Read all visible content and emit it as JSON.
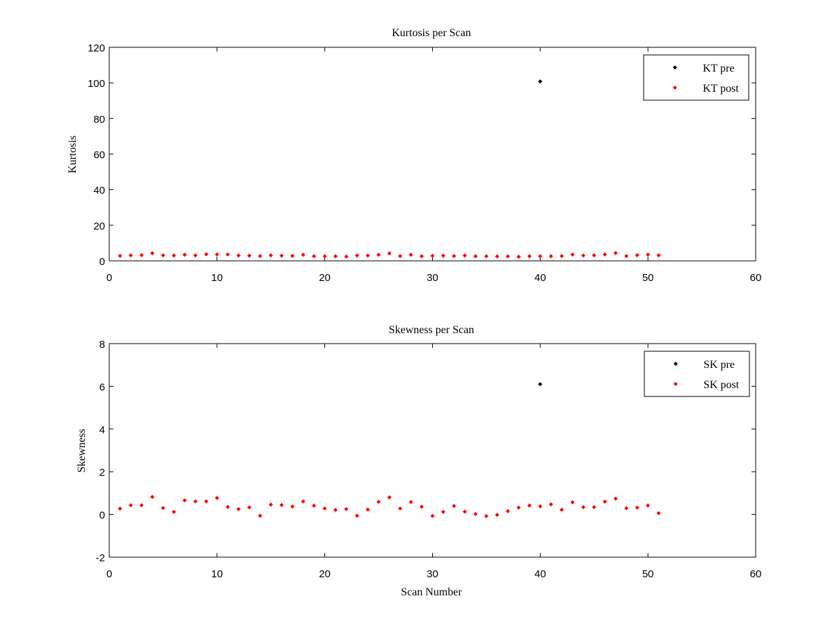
{
  "chart_data": [
    {
      "type": "scatter",
      "title": "Kurtosis per Scan",
      "xlabel": "",
      "ylabel": "Kurtosis",
      "xlim": [
        0,
        60
      ],
      "ylim": [
        0,
        120
      ],
      "xticks": [
        0,
        10,
        20,
        30,
        40,
        50,
        60
      ],
      "yticks": [
        0,
        20,
        40,
        60,
        80,
        100,
        120
      ],
      "legend_position": "top-right",
      "series": [
        {
          "name": "KT pre",
          "color": "#000000",
          "x": [
            40
          ],
          "y": [
            100.8
          ]
        },
        {
          "name": "KT post",
          "color": "#ff0000",
          "x": [
            1,
            2,
            3,
            4,
            5,
            6,
            7,
            8,
            9,
            10,
            11,
            12,
            13,
            14,
            15,
            16,
            17,
            18,
            19,
            20,
            21,
            22,
            23,
            24,
            25,
            26,
            27,
            28,
            29,
            30,
            31,
            32,
            33,
            34,
            35,
            36,
            37,
            38,
            39,
            40,
            41,
            42,
            43,
            44,
            45,
            46,
            47,
            48,
            49,
            50,
            51
          ],
          "y": [
            2.8,
            3.1,
            3.2,
            4.3,
            3.1,
            3.0,
            3.4,
            3.1,
            3.7,
            3.6,
            3.6,
            3.0,
            2.9,
            2.7,
            3.1,
            2.9,
            2.8,
            3.4,
            2.6,
            2.6,
            2.6,
            2.4,
            3.0,
            3.0,
            3.4,
            4.2,
            2.7,
            3.4,
            2.6,
            2.8,
            2.9,
            2.7,
            3.0,
            2.6,
            2.6,
            2.5,
            2.5,
            2.3,
            2.6,
            2.6,
            2.6,
            2.7,
            3.5,
            3.0,
            3.1,
            3.6,
            4.4,
            2.7,
            3.2,
            3.5,
            3.1
          ]
        }
      ]
    },
    {
      "type": "scatter",
      "title": "Skewness per Scan",
      "xlabel": "Scan Number",
      "ylabel": "Skewness",
      "xlim": [
        0,
        60
      ],
      "ylim": [
        -2,
        8
      ],
      "xticks": [
        0,
        10,
        20,
        30,
        40,
        50,
        60
      ],
      "yticks": [
        -2,
        0,
        2,
        4,
        6,
        8
      ],
      "legend_position": "top-right",
      "series": [
        {
          "name": "SK pre",
          "color": "#000000",
          "x": [
            40
          ],
          "y": [
            6.1
          ]
        },
        {
          "name": "SK post",
          "color": "#ff0000",
          "x": [
            1,
            2,
            3,
            4,
            5,
            6,
            7,
            8,
            9,
            10,
            11,
            12,
            13,
            14,
            15,
            16,
            17,
            18,
            19,
            20,
            21,
            22,
            23,
            24,
            25,
            26,
            27,
            28,
            29,
            30,
            31,
            32,
            33,
            34,
            35,
            36,
            37,
            38,
            39,
            40,
            41,
            42,
            43,
            44,
            45,
            46,
            47,
            48,
            49,
            50,
            51
          ],
          "y": [
            0.27,
            0.43,
            0.43,
            0.82,
            0.3,
            0.12,
            0.66,
            0.61,
            0.61,
            0.77,
            0.35,
            0.25,
            0.33,
            -0.06,
            0.46,
            0.44,
            0.37,
            0.61,
            0.41,
            0.28,
            0.21,
            0.25,
            -0.06,
            0.23,
            0.59,
            0.8,
            0.28,
            0.58,
            0.36,
            -0.07,
            0.12,
            0.4,
            0.13,
            0.02,
            -0.08,
            -0.02,
            0.15,
            0.32,
            0.42,
            0.38,
            0.47,
            0.22,
            0.57,
            0.34,
            0.34,
            0.6,
            0.74,
            0.29,
            0.32,
            0.42,
            0.06
          ]
        }
      ]
    }
  ]
}
